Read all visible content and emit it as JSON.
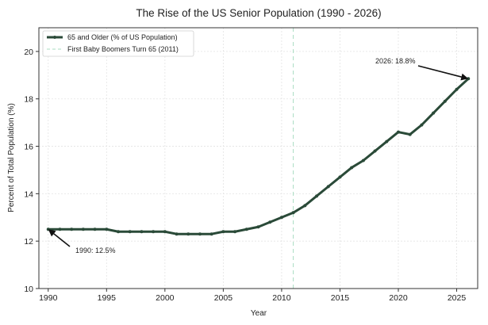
{
  "chart_data": {
    "type": "line",
    "title": "The Rise of the US Senior Population (1990 - 2026)",
    "xlabel": "Year",
    "ylabel": "Percent of Total Population (%)",
    "xlim": [
      1989.2,
      2026.8
    ],
    "ylim": [
      10,
      21
    ],
    "xticks": [
      1990,
      1995,
      2000,
      2005,
      2010,
      2015,
      2020,
      2025
    ],
    "yticks": [
      10,
      12,
      14,
      16,
      18,
      20
    ],
    "grid": true,
    "legend_position": "top-left",
    "series": [
      {
        "name": "65 and Older (% of US Population)",
        "color": "#2a4a38",
        "x": [
          1990,
          1991,
          1992,
          1993,
          1994,
          1995,
          1996,
          1997,
          1998,
          1999,
          2000,
          2001,
          2002,
          2003,
          2004,
          2005,
          2006,
          2007,
          2008,
          2009,
          2010,
          2011,
          2012,
          2013,
          2014,
          2015,
          2016,
          2017,
          2018,
          2019,
          2020,
          2021,
          2022,
          2023,
          2024,
          2025,
          2026
        ],
        "y": [
          12.5,
          12.5,
          12.5,
          12.5,
          12.5,
          12.5,
          12.4,
          12.4,
          12.4,
          12.4,
          12.4,
          12.3,
          12.3,
          12.3,
          12.3,
          12.4,
          12.4,
          12.5,
          12.6,
          12.8,
          13.0,
          13.2,
          13.5,
          13.9,
          14.3,
          14.7,
          15.1,
          15.4,
          15.8,
          16.2,
          16.6,
          16.5,
          16.9,
          17.4,
          17.9,
          18.4,
          18.85
        ]
      }
    ],
    "reference_line": {
      "name": "First Baby Boomers Turn 65 (2011)",
      "x": 2011,
      "color": "#a8dcc0"
    },
    "annotations": [
      {
        "text": "1990: 12.5%",
        "x": 1990,
        "y": 12.5
      },
      {
        "text": "2026: 18.8%",
        "x": 2026,
        "y": 18.85
      }
    ]
  }
}
